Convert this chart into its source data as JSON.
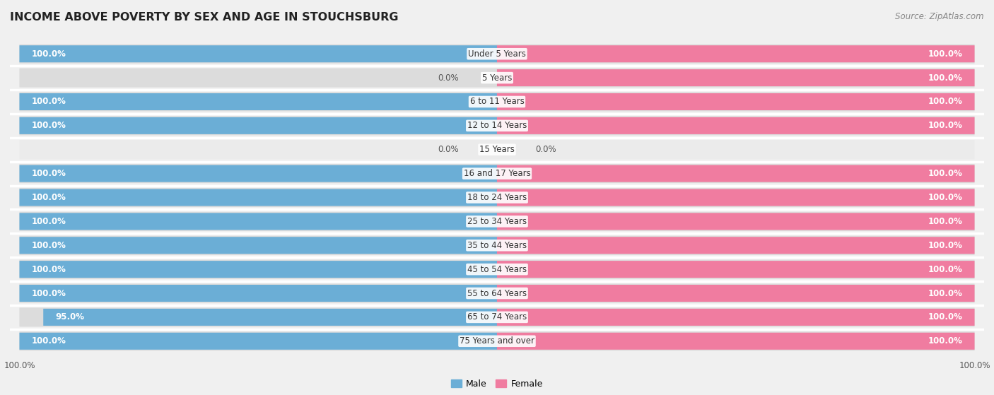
{
  "title": "INCOME ABOVE POVERTY BY SEX AND AGE IN STOUCHSBURG",
  "source": "Source: ZipAtlas.com",
  "categories": [
    "Under 5 Years",
    "5 Years",
    "6 to 11 Years",
    "12 to 14 Years",
    "15 Years",
    "16 and 17 Years",
    "18 to 24 Years",
    "25 to 34 Years",
    "35 to 44 Years",
    "45 to 54 Years",
    "55 to 64 Years",
    "65 to 74 Years",
    "75 Years and over"
  ],
  "male_values": [
    100.0,
    0.0,
    100.0,
    100.0,
    0.0,
    100.0,
    100.0,
    100.0,
    100.0,
    100.0,
    100.0,
    95.0,
    100.0
  ],
  "female_values": [
    100.0,
    100.0,
    100.0,
    100.0,
    0.0,
    100.0,
    100.0,
    100.0,
    100.0,
    100.0,
    100.0,
    100.0,
    100.0
  ],
  "male_color": "#6baed6",
  "female_color": "#f07ca0",
  "male_label": "Male",
  "female_label": "Female",
  "bar_height": 0.68,
  "xlim": 100,
  "background_color": "#f0f0f0",
  "row_color_full": "#dcdcdc",
  "row_color_empty": "#ebebeb",
  "title_fontsize": 11.5,
  "label_fontsize": 8.5,
  "tick_fontsize": 8.5,
  "source_fontsize": 8.5
}
